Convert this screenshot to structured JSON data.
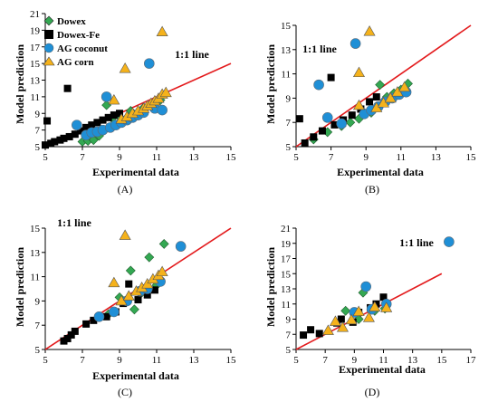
{
  "colors": {
    "Dowex": "#33a852",
    "Dowex-Fe": "#000000",
    "AG coconut": "#1f8fd6",
    "AG corn": "#f5b21b",
    "one_to_one_line": "#e31a1c"
  },
  "markers": {
    "Dowex": "diamond",
    "Dowex-Fe": "square",
    "AG coconut": "circle",
    "AG corn": "triangle"
  },
  "legend": {
    "placement": "top-left",
    "panel": "A"
  },
  "chart_data": [
    {
      "id": "A",
      "label": "(A)",
      "type": "scatter",
      "xlabel": "Experimental data",
      "ylabel": "Model prediction",
      "annotation": "1:1 line",
      "xlim": [
        5,
        15
      ],
      "ylim": [
        5,
        21
      ],
      "xticks": [
        5,
        7,
        9,
        11,
        13,
        15
      ],
      "yticks": [
        5,
        7,
        9,
        11,
        13,
        15,
        17,
        19,
        21
      ],
      "ref_line": [
        [
          5,
          5
        ],
        [
          15,
          15
        ]
      ],
      "series": [
        {
          "name": "Dowex",
          "points": [
            [
              7.0,
              5.6
            ],
            [
              7.3,
              5.7
            ],
            [
              7.6,
              5.8
            ],
            [
              7.9,
              6.3
            ],
            [
              8.3,
              10.0
            ],
            [
              8.6,
              8.4
            ],
            [
              9.0,
              8.6
            ],
            [
              9.6,
              9.3
            ],
            [
              10.3,
              9.7
            ],
            [
              10.9,
              10.1
            ],
            [
              11.2,
              10.6
            ]
          ]
        },
        {
          "name": "Dowex-Fe",
          "points": [
            [
              5.0,
              5.2
            ],
            [
              5.1,
              8.1
            ],
            [
              5.3,
              5.4
            ],
            [
              5.5,
              5.6
            ],
            [
              5.8,
              5.8
            ],
            [
              6.0,
              6.0
            ],
            [
              6.2,
              12.0
            ],
            [
              6.3,
              6.2
            ],
            [
              6.6,
              6.5
            ],
            [
              6.9,
              6.9
            ],
            [
              7.2,
              7.3
            ],
            [
              7.5,
              7.6
            ],
            [
              7.8,
              7.9
            ],
            [
              8.1,
              8.2
            ],
            [
              8.4,
              8.5
            ],
            [
              8.7,
              8.8
            ],
            [
              9.0,
              9.0
            ]
          ]
        },
        {
          "name": "AG coconut",
          "points": [
            [
              6.7,
              7.6
            ],
            [
              7.2,
              6.4
            ],
            [
              7.5,
              6.7
            ],
            [
              7.8,
              6.8
            ],
            [
              8.1,
              7.0
            ],
            [
              8.3,
              11.0
            ],
            [
              8.5,
              7.3
            ],
            [
              8.8,
              7.6
            ],
            [
              9.1,
              7.9
            ],
            [
              9.4,
              8.2
            ],
            [
              9.7,
              8.5
            ],
            [
              10.0,
              8.8
            ],
            [
              10.3,
              9.1
            ],
            [
              10.6,
              15.0
            ],
            [
              10.9,
              9.6
            ],
            [
              11.3,
              9.4
            ]
          ]
        },
        {
          "name": "AG corn",
          "points": [
            [
              8.7,
              10.6
            ],
            [
              9.1,
              8.3
            ],
            [
              9.3,
              14.4
            ],
            [
              9.4,
              8.6
            ],
            [
              9.7,
              9.0
            ],
            [
              10.0,
              9.3
            ],
            [
              10.3,
              9.6
            ],
            [
              10.5,
              9.9
            ],
            [
              10.7,
              10.2
            ],
            [
              10.9,
              10.5
            ],
            [
              11.1,
              10.8
            ],
            [
              11.3,
              11.3
            ],
            [
              11.5,
              11.5
            ],
            [
              11.3,
              18.8
            ]
          ]
        }
      ]
    },
    {
      "id": "B",
      "label": "(B)",
      "type": "scatter",
      "xlabel": "Experimental data",
      "ylabel": "Model prediction",
      "annotation": "1:1 line",
      "xlim": [
        5,
        15
      ],
      "ylim": [
        5,
        15
      ],
      "xticks": [
        5,
        7,
        9,
        11,
        13,
        15
      ],
      "yticks": [
        5,
        7,
        9,
        11,
        13,
        15
      ],
      "ref_line": [
        [
          5,
          5
        ],
        [
          15,
          15
        ]
      ],
      "series": [
        {
          "name": "Dowex",
          "points": [
            [
              6.0,
              5.6
            ],
            [
              6.8,
              6.2
            ],
            [
              7.6,
              6.7
            ],
            [
              8.1,
              7.0
            ],
            [
              8.6,
              7.3
            ],
            [
              9.3,
              7.8
            ],
            [
              9.8,
              10.1
            ],
            [
              10.2,
              9.1
            ],
            [
              10.6,
              9.4
            ],
            [
              11.0,
              9.7
            ],
            [
              11.4,
              10.2
            ]
          ]
        },
        {
          "name": "Dowex-Fe",
          "points": [
            [
              5.2,
              7.3
            ],
            [
              5.5,
              5.3
            ],
            [
              6.0,
              5.8
            ],
            [
              6.5,
              6.3
            ],
            [
              7.0,
              10.7
            ],
            [
              7.2,
              6.8
            ],
            [
              7.7,
              7.2
            ],
            [
              8.2,
              7.6
            ],
            [
              8.7,
              8.1
            ],
            [
              9.2,
              8.7
            ],
            [
              9.6,
              9.1
            ]
          ]
        },
        {
          "name": "AG coconut",
          "points": [
            [
              6.3,
              10.1
            ],
            [
              6.8,
              7.4
            ],
            [
              7.6,
              6.9
            ],
            [
              8.4,
              13.5
            ],
            [
              8.9,
              7.7
            ],
            [
              9.3,
              8.0
            ],
            [
              9.7,
              8.3
            ],
            [
              10.1,
              8.7
            ],
            [
              10.5,
              9.0
            ],
            [
              10.9,
              9.3
            ],
            [
              11.3,
              9.5
            ]
          ]
        },
        {
          "name": "AG corn",
          "points": [
            [
              8.6,
              11.1
            ],
            [
              8.6,
              8.4
            ],
            [
              9.2,
              14.5
            ],
            [
              9.6,
              8.2
            ],
            [
              10.0,
              8.6
            ],
            [
              10.4,
              9.0
            ],
            [
              10.8,
              9.5
            ],
            [
              11.2,
              9.9
            ]
          ]
        }
      ]
    },
    {
      "id": "C",
      "label": "(C)",
      "type": "scatter",
      "xlabel": "Experimental data",
      "ylabel": "Model prediction",
      "annotation": "1:1 line",
      "xlim": [
        5,
        15
      ],
      "ylim": [
        5,
        15
      ],
      "xticks": [
        5,
        7,
        9,
        11,
        13,
        15
      ],
      "yticks": [
        5,
        7,
        9,
        11,
        13,
        15
      ],
      "ref_line": [
        [
          5,
          5
        ],
        [
          15,
          15
        ]
      ],
      "series": [
        {
          "name": "Dowex",
          "points": [
            [
              8.4,
              7.9
            ],
            [
              9.0,
              9.3
            ],
            [
              9.6,
              11.5
            ],
            [
              9.8,
              8.3
            ],
            [
              10.2,
              9.7
            ],
            [
              10.6,
              12.6
            ],
            [
              11.0,
              10.3
            ],
            [
              11.4,
              13.7
            ]
          ]
        },
        {
          "name": "Dowex-Fe",
          "points": [
            [
              6.0,
              5.7
            ],
            [
              6.2,
              5.9
            ],
            [
              6.4,
              6.2
            ],
            [
              6.6,
              6.5
            ],
            [
              7.2,
              7.1
            ],
            [
              7.6,
              7.4
            ],
            [
              8.3,
              7.7
            ],
            [
              8.8,
              8.1
            ],
            [
              9.2,
              8.8
            ],
            [
              9.5,
              10.4
            ],
            [
              10.0,
              9.1
            ],
            [
              10.5,
              9.5
            ],
            [
              10.9,
              9.9
            ]
          ]
        },
        {
          "name": "AG coconut",
          "points": [
            [
              7.9,
              7.7
            ],
            [
              8.7,
              8.1
            ],
            [
              9.4,
              9.0
            ],
            [
              10.1,
              9.8
            ],
            [
              10.5,
              10.0
            ],
            [
              11.2,
              10.6
            ],
            [
              12.3,
              13.5
            ]
          ]
        },
        {
          "name": "AG corn",
          "points": [
            [
              8.7,
              10.5
            ],
            [
              9.1,
              9.0
            ],
            [
              9.3,
              14.4
            ],
            [
              9.5,
              9.4
            ],
            [
              9.9,
              9.8
            ],
            [
              10.2,
              10.1
            ],
            [
              10.5,
              10.4
            ],
            [
              10.8,
              10.8
            ],
            [
              11.1,
              11.1
            ],
            [
              11.3,
              11.4
            ]
          ]
        }
      ]
    },
    {
      "id": "D",
      "label": "(D)",
      "type": "scatter",
      "xlabel": "Experimental data",
      "ylabel": "Model prediction",
      "annotation": "1:1 line",
      "xlim": [
        5,
        17
      ],
      "ylim": [
        5,
        21
      ],
      "xticks": [
        5,
        7,
        9,
        11,
        13,
        15,
        17
      ],
      "yticks": [
        5,
        7,
        9,
        11,
        13,
        15,
        17,
        19,
        21
      ],
      "ref_line": [
        [
          5,
          5
        ],
        [
          15,
          15
        ]
      ],
      "series": [
        {
          "name": "Dowex",
          "points": [
            [
              8.4,
              10.1
            ],
            [
              9.3,
              9.0
            ],
            [
              9.6,
              12.5
            ],
            [
              10.4,
              10.1
            ],
            [
              11.1,
              10.4
            ]
          ]
        },
        {
          "name": "Dowex-Fe",
          "points": [
            [
              5.5,
              6.9
            ],
            [
              6.0,
              7.6
            ],
            [
              6.6,
              7.1
            ],
            [
              7.8,
              8.5
            ],
            [
              8.1,
              9.0
            ],
            [
              8.9,
              8.6
            ],
            [
              9.3,
              9.9
            ],
            [
              10.1,
              10.5
            ],
            [
              10.5,
              11.0
            ],
            [
              11.0,
              11.9
            ]
          ]
        },
        {
          "name": "AG coconut",
          "points": [
            [
              9.0,
              9.9
            ],
            [
              9.8,
              13.3
            ],
            [
              10.2,
              10.3
            ],
            [
              11.2,
              11.0
            ],
            [
              15.5,
              19.2
            ]
          ]
        },
        {
          "name": "AG corn",
          "points": [
            [
              7.2,
              7.5
            ],
            [
              7.7,
              8.7
            ],
            [
              8.2,
              7.9
            ],
            [
              8.8,
              8.9
            ],
            [
              9.3,
              10.0
            ],
            [
              10.0,
              9.2
            ],
            [
              10.4,
              10.6
            ],
            [
              11.2,
              10.5
            ]
          ]
        }
      ]
    }
  ]
}
